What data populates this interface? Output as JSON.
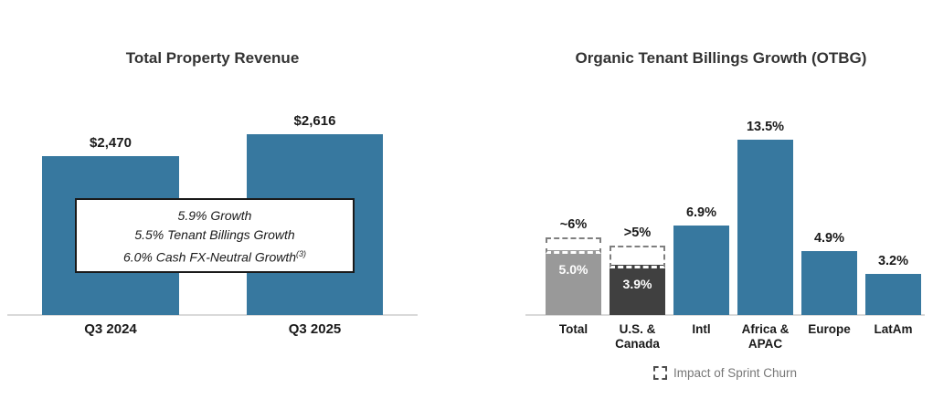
{
  "colors": {
    "bar_blue": "#37789F",
    "bar_gray": "#999999",
    "bar_dark_gray": "#404040",
    "churn_dash_gray": "#7F7F7F",
    "axis_line": "#D9D9D9",
    "title_text": "#333333",
    "label_text": "#1A1A1A",
    "legend_text": "#777777",
    "background": "#FFFFFF"
  },
  "chart_data": [
    {
      "type": "bar",
      "title": "Total Property Revenue",
      "categories": [
        "Q3 2024",
        "Q3 2025"
      ],
      "values": [
        2470,
        2616
      ],
      "value_labels": [
        "$2,470",
        "$2,616"
      ],
      "bar_color": "#37789F",
      "xlabel": "",
      "ylabel": "",
      "grid": "off",
      "annotation_box": {
        "lines": [
          "5.9% Growth",
          "5.5% Tenant Billings Growth",
          "6.0% Cash FX-Neutral Growth"
        ],
        "footnote_superscript": "(3)"
      }
    },
    {
      "type": "bar",
      "title": "Organic Tenant Billings Growth (OTBG)",
      "categories": [
        "Total",
        "U.S. & Canada",
        "Intl",
        "Africa & APAC",
        "Europe",
        "LatAm"
      ],
      "values": [
        5.0,
        3.9,
        6.9,
        13.5,
        4.9,
        3.2
      ],
      "xlabel": "",
      "ylabel": "",
      "grid": "off",
      "bars": [
        {
          "category": "Total",
          "value": 5.0,
          "label": "5.0%",
          "label_placement": "inside",
          "color": "#999999",
          "churn_label": "~6%",
          "churn_level": 6.0
        },
        {
          "category": "U.S. & Canada",
          "value": 3.9,
          "label": "3.9%",
          "label_placement": "inside",
          "color": "#404040",
          "churn_label": ">5%",
          "churn_level": 5.35
        },
        {
          "category": "Intl",
          "value": 6.9,
          "label": "6.9%",
          "label_placement": "above",
          "color": "#37789F"
        },
        {
          "category": "Africa & APAC",
          "value": 13.5,
          "label": "13.5%",
          "label_placement": "above",
          "color": "#37789F"
        },
        {
          "category": "Europe",
          "value": 4.9,
          "label": "4.9%",
          "label_placement": "above",
          "color": "#37789F"
        },
        {
          "category": "LatAm",
          "value": 3.2,
          "label": "3.2%",
          "label_placement": "above",
          "color": "#37789F"
        }
      ],
      "legend": {
        "icon": "dashed-box-icon",
        "label": "Impact of Sprint Churn",
        "position": "bottom-center"
      }
    }
  ]
}
